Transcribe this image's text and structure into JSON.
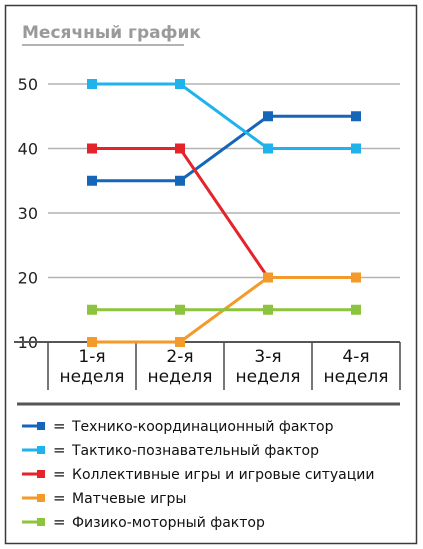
{
  "chart_data": {
    "type": "line",
    "title": "Месячный график",
    "categories": [
      [
        "1-я",
        "неделя"
      ],
      [
        "2-я",
        "неделя"
      ],
      [
        "3-я",
        "неделя"
      ],
      [
        "4-я",
        "неделя"
      ]
    ],
    "y_ticks": [
      "10",
      "20",
      "30",
      "40",
      "50"
    ],
    "ylim": [
      10,
      50
    ],
    "grid": true,
    "series": [
      {
        "name": "Технико-координационный фактор",
        "color": "#1565b8",
        "values": [
          35,
          35,
          45,
          45
        ]
      },
      {
        "name": "Тактико-познавательный фактор",
        "color": "#1fb2ec",
        "values": [
          50,
          50,
          40,
          40
        ]
      },
      {
        "name": "Коллективные игры и игровые ситуации",
        "color": "#e4232a",
        "values": [
          40,
          40,
          20,
          20
        ]
      },
      {
        "name": "Матчевые игры",
        "color": "#f39a2a",
        "values": [
          10,
          10,
          20,
          20
        ]
      },
      {
        "name": "Физико-моторный фактор",
        "color": "#8cc43f",
        "values": [
          15,
          15,
          15,
          15
        ]
      }
    ],
    "legend_symbol": "=",
    "legend_position": "bottom"
  }
}
